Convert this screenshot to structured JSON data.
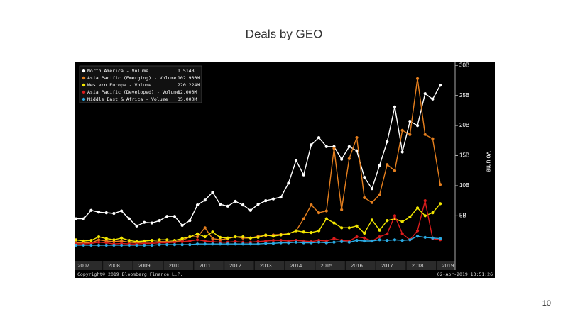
{
  "slide": {
    "title": "Deals by GEO",
    "page_number": "10"
  },
  "chart_data": {
    "type": "line",
    "axis_label": "Volume",
    "source": "Copyright© 2019 Bloomberg Finance L.P.",
    "timestamp": "02-Apr-2019 13:51:26",
    "categories": [
      null,
      "2007",
      null,
      null,
      null,
      "2008",
      null,
      null,
      null,
      "2009",
      null,
      null,
      null,
      "2010",
      null,
      null,
      null,
      "2011",
      null,
      null,
      null,
      "2012",
      null,
      null,
      null,
      "2013",
      null,
      null,
      null,
      "2014",
      null,
      null,
      null,
      "2015",
      null,
      null,
      null,
      "2016",
      null,
      null,
      null,
      "2017",
      null,
      null,
      null,
      "2018",
      null,
      null,
      null,
      "2019"
    ],
    "ylim": [
      -2.5,
      30.5
    ],
    "yticks": [
      {
        "value": 5,
        "label": "5B"
      },
      {
        "value": 10,
        "label": "10B"
      },
      {
        "value": 15,
        "label": "15B"
      },
      {
        "value": 20,
        "label": "20B"
      },
      {
        "value": 25,
        "label": "25B"
      },
      {
        "value": 30,
        "label": "30B"
      }
    ],
    "grid": false,
    "legend": "upper left",
    "series": [
      {
        "name": "North America - Volume",
        "legend_value": "1.514B",
        "color": "#ffffff",
        "values": [
          4.5,
          4.5,
          5.9,
          5.6,
          5.5,
          5.4,
          5.8,
          4.5,
          3.3,
          3.9,
          3.8,
          4.2,
          4.9,
          4.9,
          3.4,
          4.2,
          6.8,
          7.6,
          8.9,
          6.9,
          6.6,
          7.4,
          6.8,
          5.9,
          6.9,
          7.5,
          7.8,
          8.1,
          10.4,
          14.2,
          11.8,
          16.8,
          18.0,
          16.5,
          16.5,
          14.4,
          16.5,
          15.8,
          11.4,
          9.5,
          13.4,
          17.3,
          23.1,
          15.6,
          20.7,
          20.0,
          25.3,
          24.4,
          26.7,
          null
        ]
      },
      {
        "name": "Asia Pacific (Emerging) - Volume",
        "legend_value": "102.900M",
        "color": "#e57f1e",
        "values": [
          0.5,
          0.5,
          0.5,
          1.0,
          0.8,
          0.7,
          0.8,
          0.6,
          0.5,
          0.6,
          0.6,
          0.7,
          0.7,
          0.7,
          0.9,
          1.5,
          1.5,
          3.0,
          1.2,
          1.0,
          1.2,
          1.5,
          1.3,
          1.3,
          1.6,
          1.7,
          1.8,
          1.9,
          2.0,
          2.5,
          4.5,
          6.8,
          5.5,
          5.8,
          16.2,
          6.0,
          14.5,
          18.0,
          8.0,
          7.2,
          8.5,
          13.5,
          12.5,
          19.2,
          18.5,
          27.8,
          18.5,
          17.8,
          10.2,
          null
        ]
      },
      {
        "name": "Western Europe - Volume",
        "legend_value": "220.224M",
        "color": "#f2e600",
        "values": [
          1.0,
          0.8,
          0.9,
          1.5,
          1.2,
          1.0,
          1.3,
          0.9,
          0.7,
          0.8,
          0.9,
          1.0,
          1.0,
          0.9,
          1.2,
          1.5,
          2.0,
          1.5,
          2.3,
          1.4,
          1.3,
          1.5,
          1.5,
          1.3,
          1.4,
          1.8,
          1.6,
          1.8,
          2.0,
          2.5,
          2.3,
          2.2,
          2.5,
          4.5,
          3.8,
          3.0,
          3.0,
          3.3,
          2.1,
          4.3,
          2.6,
          4.2,
          4.5,
          4.0,
          4.8,
          6.3,
          5.0,
          5.5,
          7.0,
          null
        ]
      },
      {
        "name": "Asia Pacific (Developed) - Volume",
        "legend_value": "12.000M",
        "color": "#d91c1c",
        "values": [
          0.3,
          0.3,
          0.4,
          0.6,
          0.5,
          0.3,
          0.4,
          0.3,
          0.3,
          0.4,
          0.4,
          0.5,
          0.5,
          0.6,
          0.7,
          0.8,
          1.0,
          0.8,
          0.7,
          0.6,
          0.6,
          0.7,
          0.6,
          0.6,
          0.7,
          0.8,
          0.9,
          0.9,
          0.8,
          0.9,
          0.8,
          0.7,
          0.9,
          0.8,
          1.2,
          0.9,
          0.8,
          1.5,
          1.3,
          0.8,
          1.5,
          2.0,
          5.0,
          2.0,
          1.0,
          2.5,
          7.5,
          1.2,
          1.0,
          null
        ]
      },
      {
        "name": "Middle East & Africa - Volume",
        "legend_value": "35.000M",
        "color": "#2aaae2",
        "values": [
          0.1,
          0.1,
          0.1,
          0.1,
          0.1,
          0.1,
          0.1,
          0.1,
          0.1,
          0.1,
          0.1,
          0.2,
          0.2,
          0.2,
          0.2,
          0.2,
          0.3,
          0.3,
          0.3,
          0.3,
          0.3,
          0.3,
          0.3,
          0.3,
          0.3,
          0.4,
          0.4,
          0.5,
          0.5,
          0.6,
          0.5,
          0.5,
          0.6,
          0.5,
          0.6,
          0.7,
          0.6,
          0.9,
          0.8,
          0.8,
          1.0,
          0.9,
          1.0,
          0.9,
          1.0,
          1.6,
          1.4,
          1.3,
          1.2,
          null
        ]
      }
    ]
  }
}
